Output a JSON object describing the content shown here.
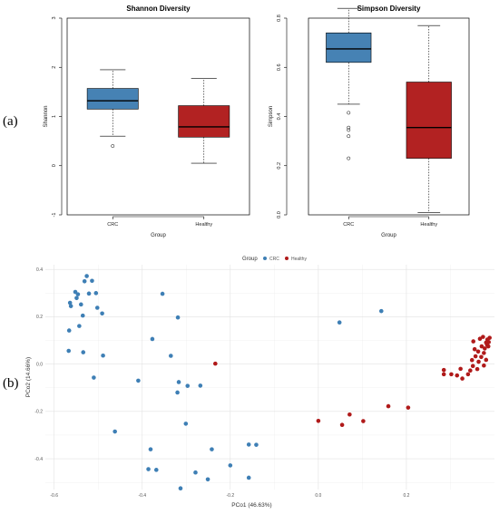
{
  "figure": {
    "label_a": "(a)",
    "label_b": "(b)"
  },
  "chart_data": [
    {
      "type": "box",
      "title": "Shannon Diversity",
      "xlabel": "Group",
      "ylabel": "Shannon",
      "ylim": [
        -1,
        3
      ],
      "yticks": [
        "-1",
        "0",
        "1",
        "2",
        "3"
      ],
      "categories": [
        "CRC",
        "Healthy"
      ],
      "colors": [
        "#4682B4",
        "#B22222"
      ],
      "boxes": [
        {
          "whisker_low": 0.6,
          "q1": 1.15,
          "median": 1.32,
          "q3": 1.57,
          "whisker_high": 1.95,
          "outliers": [
            0.4
          ]
        },
        {
          "whisker_low": 0.05,
          "q1": 0.58,
          "median": 0.79,
          "q3": 1.22,
          "whisker_high": 1.77,
          "outliers": []
        }
      ]
    },
    {
      "type": "box",
      "title": "Simpson Diversity",
      "xlabel": "Group",
      "ylabel": "Simpson",
      "ylim": [
        0,
        0.8
      ],
      "yticks": [
        "0.0",
        "0.2",
        "0.4",
        "0.6",
        "0.8"
      ],
      "categories": [
        "CRC",
        "Healthy"
      ],
      "colors": [
        "#4682B4",
        "#B22222"
      ],
      "boxes": [
        {
          "whisker_low": 0.45,
          "q1": 0.62,
          "median": 0.675,
          "q3": 0.74,
          "whisker_high": 0.84,
          "outliers": [
            0.415,
            0.355,
            0.345,
            0.32,
            0.23
          ]
        },
        {
          "whisker_low": 0.01,
          "q1": 0.23,
          "median": 0.355,
          "q3": 0.54,
          "whisker_high": 0.77,
          "outliers": []
        }
      ]
    },
    {
      "type": "scatter",
      "xlabel": "PCo1 (46.63%)",
      "ylabel": "PCo2 (14.66%)",
      "xlim": [
        -0.62,
        0.4
      ],
      "ylim": [
        -0.53,
        0.42
      ],
      "xticks": [
        "-0.6",
        "-0.4",
        "-0.2",
        "0.0",
        "0.2"
      ],
      "yticks": [
        "-0.4",
        "-0.2",
        "0.0",
        "0.2",
        "0.4"
      ],
      "legend_title": "Group",
      "legend_position": "top",
      "grid": true,
      "series": [
        {
          "name": "CRC",
          "color": "#3E7FB5",
          "points": [
            [
              -0.526,
              0.372
            ],
            [
              -0.531,
              0.35
            ],
            [
              -0.514,
              0.352
            ],
            [
              -0.521,
              0.298
            ],
            [
              -0.546,
              0.295
            ],
            [
              -0.552,
              0.305
            ],
            [
              -0.564,
              0.259
            ],
            [
              -0.562,
              0.245
            ],
            [
              -0.505,
              0.3
            ],
            [
              -0.502,
              0.238
            ],
            [
              -0.539,
              0.252
            ],
            [
              -0.549,
              0.279
            ],
            [
              -0.491,
              0.214
            ],
            [
              -0.535,
              0.205
            ],
            [
              -0.566,
              0.142
            ],
            [
              -0.543,
              0.161
            ],
            [
              -0.567,
              0.056
            ],
            [
              -0.534,
              0.05
            ],
            [
              -0.489,
              0.036
            ],
            [
              -0.51,
              -0.057
            ],
            [
              -0.354,
              0.297
            ],
            [
              -0.319,
              0.197
            ],
            [
              -0.377,
              0.106
            ],
            [
              -0.335,
              0.035
            ],
            [
              -0.409,
              -0.07
            ],
            [
              -0.317,
              -0.076
            ],
            [
              -0.297,
              -0.092
            ],
            [
              -0.268,
              -0.091
            ],
            [
              -0.32,
              -0.12
            ],
            [
              -0.301,
              -0.252
            ],
            [
              -0.462,
              -0.285
            ],
            [
              -0.381,
              -0.36
            ],
            [
              -0.242,
              -0.36
            ],
            [
              -0.2,
              -0.428
            ],
            [
              -0.386,
              -0.444
            ],
            [
              -0.368,
              -0.447
            ],
            [
              -0.279,
              -0.458
            ],
            [
              -0.251,
              -0.487
            ],
            [
              -0.158,
              -0.48
            ],
            [
              -0.158,
              -0.34
            ],
            [
              -0.141,
              -0.341
            ],
            [
              -0.313,
              -0.525
            ],
            [
              0.048,
              0.176
            ],
            [
              0.143,
              0.224
            ]
          ]
        },
        {
          "name": "Healthy",
          "color": "#B01A1A",
          "points": [
            [
              -0.234,
              0.002
            ],
            [
              0.0,
              -0.24
            ],
            [
              0.054,
              -0.257
            ],
            [
              0.071,
              -0.213
            ],
            [
              0.102,
              -0.241
            ],
            [
              0.159,
              -0.178
            ],
            [
              0.204,
              -0.184
            ],
            [
              0.285,
              -0.043
            ],
            [
              0.285,
              -0.025
            ],
            [
              0.302,
              -0.043
            ],
            [
              0.315,
              -0.048
            ],
            [
              0.323,
              -0.02
            ],
            [
              0.327,
              -0.061
            ],
            [
              0.34,
              -0.043
            ],
            [
              0.345,
              -0.027
            ],
            [
              0.351,
              -0.008
            ],
            [
              0.361,
              -0.021
            ],
            [
              0.364,
              0.01
            ],
            [
              0.37,
              0.03
            ],
            [
              0.376,
              -0.006
            ],
            [
              0.381,
              0.018
            ],
            [
              0.352,
              0.096
            ],
            [
              0.367,
              0.107
            ],
            [
              0.384,
              0.104
            ],
            [
              0.374,
              0.115
            ],
            [
              0.387,
              0.093
            ],
            [
              0.378,
              0.066
            ],
            [
              0.386,
              0.075
            ],
            [
              0.371,
              0.075
            ],
            [
              0.355,
              0.063
            ],
            [
              0.363,
              0.053
            ],
            [
              0.381,
              0.091
            ],
            [
              0.376,
              0.047
            ],
            [
              0.357,
              0.033
            ],
            [
              0.349,
              0.017
            ],
            [
              0.383,
              0.082
            ],
            [
              0.389,
              0.111
            ]
          ]
        }
      ]
    }
  ]
}
